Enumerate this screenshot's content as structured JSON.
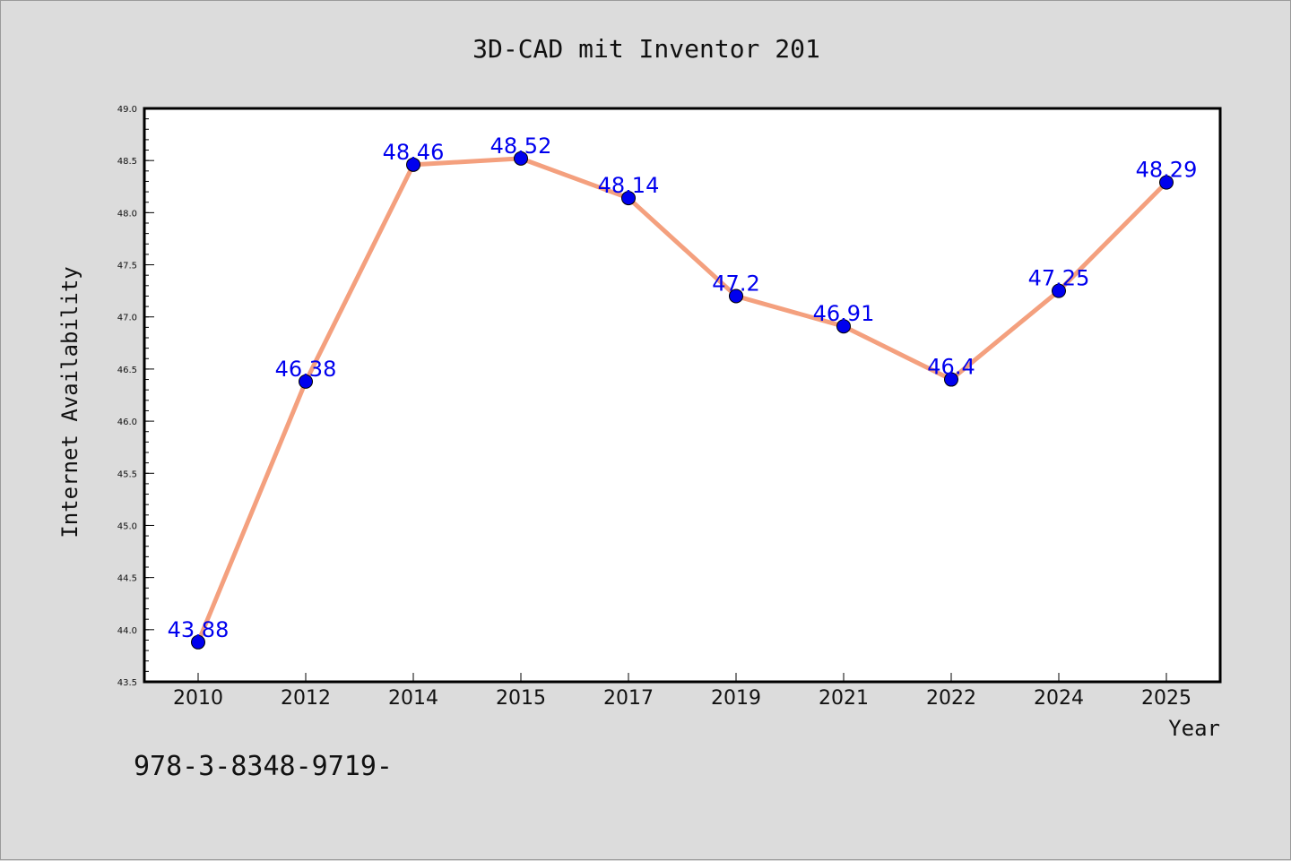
{
  "chart_data": {
    "type": "line",
    "title": "3D-CAD mit Inventor 201",
    "xlabel": "Year",
    "ylabel": "Internet Availability",
    "categories": [
      "2010",
      "2012",
      "2014",
      "2015",
      "2017",
      "2019",
      "2021",
      "2022",
      "2024",
      "2025"
    ],
    "series": [
      {
        "values": [
          43.88,
          46.38,
          48.46,
          48.52,
          48.14,
          47.2,
          46.91,
          46.4,
          47.25,
          48.29
        ],
        "data_labels": [
          "43.88",
          "46.38",
          "48.46",
          "48.52",
          "48.14",
          "47.2",
          "46.91",
          "46.4",
          "47.25",
          "48.29"
        ],
        "line_color": "#f4a07e",
        "marker_color": "#0000ee",
        "label_color": "#0000ee"
      }
    ],
    "ylim": [
      43.5,
      49.0
    ],
    "yticks": [
      "43.5",
      "44.0",
      "44.5",
      "45.0",
      "45.5",
      "46.0",
      "46.5",
      "47.0",
      "47.5",
      "48.0",
      "48.5",
      "49.0"
    ],
    "grid": false,
    "legend": "none"
  },
  "footer": {
    "isbn_text": "978-3-8348-9719-"
  },
  "colors": {
    "page_background": "#dcdcdc",
    "plot_background": "#ffffff",
    "frame": "#000000"
  }
}
